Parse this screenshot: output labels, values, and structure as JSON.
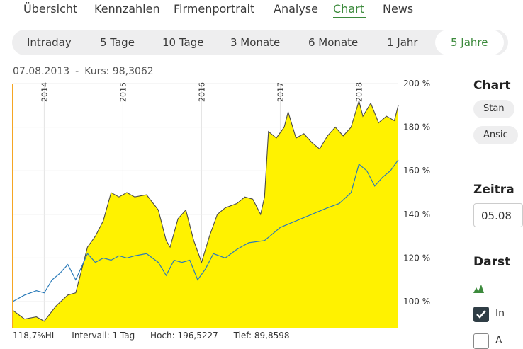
{
  "nav": {
    "items": [
      "Übersicht",
      "Kennzahlen",
      "Firmenportrait",
      "Analyse",
      "Chart",
      "News"
    ],
    "active": "Chart"
  },
  "range": {
    "buttons": [
      "Intraday",
      "5 Tage",
      "10 Tage",
      "3 Monate",
      "6 Monate",
      "1 Jahr",
      "5 Jahre"
    ],
    "active": "5 Jahre"
  },
  "quote": {
    "date": "07.08.2013",
    "separator": "-",
    "kurs_label": "Kurs: 98,3062"
  },
  "footer": {
    "hl": "118,7%HL",
    "intervall": "Intervall: 1 Tag",
    "hoch": "Hoch: 196,5227",
    "tief": "Tief: 89,8598"
  },
  "sidebar": {
    "chart_title": "Chart",
    "chip1": "Stan",
    "chip2": "Ansic",
    "zeitraum_title": "Zeitra",
    "date_value": "05.08",
    "darst_title": "Darst",
    "checkbox1_label": "In",
    "checkbox2_label": "A"
  },
  "colors": {
    "accent": "#3c8a3c",
    "fill": "#fff200",
    "stock_line": "#4a4a4a",
    "index_line": "#2b7bb9",
    "marker": "#f5a623"
  },
  "chart_data": {
    "type": "area",
    "title": "",
    "year_labels": [
      "2014",
      "2015",
      "2016",
      "2017",
      "2018"
    ],
    "year_positions": [
      2014.0,
      2015.0,
      2016.0,
      2017.0,
      2018.0
    ],
    "y_ticks": [
      "100 %",
      "120 %",
      "140 %",
      "160 %",
      "180 %",
      "200 %"
    ],
    "y_tick_values": [
      100,
      120,
      140,
      160,
      180,
      200
    ],
    "xlim": [
      2013.6,
      2018.5
    ],
    "ylim": [
      88,
      200
    ],
    "series": [
      {
        "style": "area",
        "x": [
          2013.6,
          2013.75,
          2013.9,
          2014.0,
          2014.15,
          2014.3,
          2014.4,
          2014.55,
          2014.65,
          2014.75,
          2014.85,
          2014.95,
          2015.05,
          2015.15,
          2015.3,
          2015.45,
          2015.55,
          2015.6,
          2015.7,
          2015.8,
          2015.9,
          2016.0,
          2016.1,
          2016.2,
          2016.3,
          2016.45,
          2016.55,
          2016.65,
          2016.75,
          2016.8,
          2016.85,
          2016.95,
          2017.05,
          2017.1,
          2017.2,
          2017.3,
          2017.4,
          2017.5,
          2017.6,
          2017.7,
          2017.8,
          2017.9,
          2018.0,
          2018.05,
          2018.15,
          2018.25,
          2018.35,
          2018.45,
          2018.5
        ],
        "values": [
          96,
          92,
          93,
          91,
          98,
          103,
          104,
          125,
          130,
          137,
          150,
          148,
          150,
          148,
          149,
          142,
          128,
          125,
          138,
          142,
          128,
          118,
          130,
          140,
          143,
          145,
          148,
          147,
          140,
          148,
          178,
          175,
          180,
          187,
          175,
          177,
          173,
          170,
          176,
          180,
          176,
          180,
          192,
          185,
          191,
          182,
          185,
          183,
          190
        ]
      },
      {
        "style": "line",
        "x": [
          2013.6,
          2013.75,
          2013.9,
          2014.0,
          2014.1,
          2014.2,
          2014.3,
          2014.4,
          2014.55,
          2014.65,
          2014.75,
          2014.85,
          2014.95,
          2015.05,
          2015.15,
          2015.3,
          2015.45,
          2015.55,
          2015.65,
          2015.75,
          2015.85,
          2015.95,
          2016.05,
          2016.15,
          2016.3,
          2016.45,
          2016.6,
          2016.8,
          2017.0,
          2017.2,
          2017.4,
          2017.6,
          2017.75,
          2017.9,
          2018.0,
          2018.1,
          2018.2,
          2018.3,
          2018.4,
          2018.5
        ],
        "values": [
          100,
          103,
          105,
          104,
          110,
          113,
          117,
          110,
          122,
          118,
          120,
          119,
          121,
          120,
          121,
          122,
          118,
          112,
          119,
          118,
          119,
          110,
          115,
          122,
          120,
          124,
          127,
          128,
          134,
          137,
          140,
          143,
          145,
          150,
          163,
          160,
          153,
          157,
          160,
          165
        ]
      }
    ]
  }
}
